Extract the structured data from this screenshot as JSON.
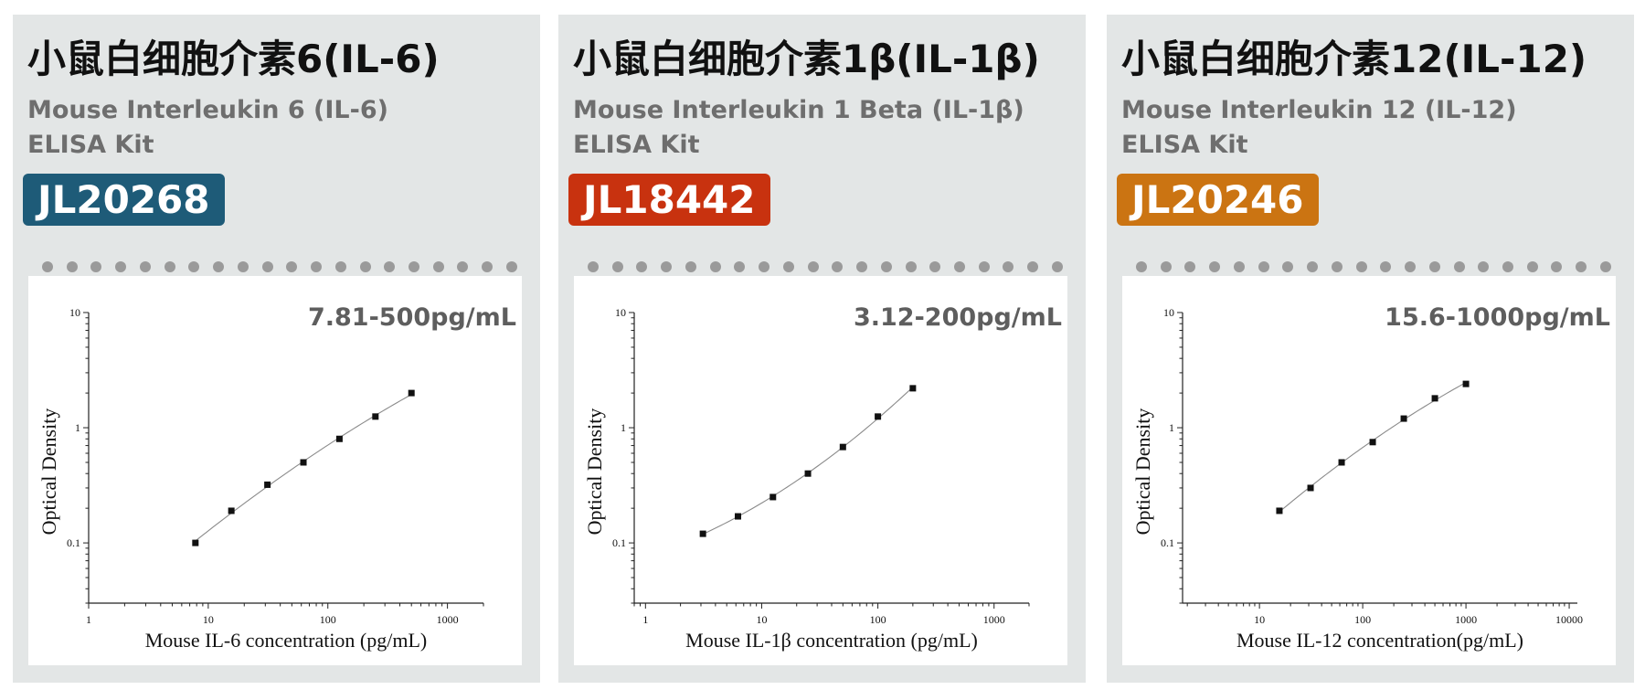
{
  "cards": [
    {
      "title_cn": "小鼠白细胞介素6(IL-6)",
      "title_en_line1": "Mouse Interleukin 6 (IL-6)",
      "title_en_line2": "ELISA Kit",
      "catalog": "JL20268",
      "badge_color": "#1e5b78",
      "range": "7.81-500pg/mL"
    },
    {
      "title_cn": "小鼠白细胞介素1β(IL-1β)",
      "title_en_line1": "Mouse Interleukin 1 Beta (IL-1β)",
      "title_en_line2": "ELISA Kit",
      "catalog": "JL18442",
      "badge_color": "#c8320f",
      "range": "3.12-200pg/mL"
    },
    {
      "title_cn": "小鼠白细胞介素12(IL-12)",
      "title_en_line1": "Mouse Interleukin 12 (IL-12)",
      "title_en_line2": "ELISA Kit",
      "catalog": "JL20246",
      "badge_color": "#cb7412",
      "range": "15.6-1000pg/mL"
    }
  ],
  "chart_data": [
    {
      "type": "scatter",
      "title": "",
      "xlabel": "Mouse IL-6 concentration (pg/mL)",
      "ylabel": "Optical Density",
      "xscale": "log",
      "yscale": "log",
      "xlim": [
        1,
        2000
      ],
      "ylim": [
        0.03,
        10
      ],
      "xticks": [
        "1",
        "10",
        "100",
        "1000"
      ],
      "yticks": [
        "0.1",
        "1",
        "10"
      ],
      "x": [
        7.81,
        15.6,
        31.25,
        62.5,
        125,
        250,
        500
      ],
      "y": [
        0.1,
        0.19,
        0.32,
        0.5,
        0.8,
        1.25,
        2.0
      ],
      "grid": false,
      "fit_line": true
    },
    {
      "type": "scatter",
      "title": "",
      "xlabel": "Mouse IL-1β concentration (pg/mL)",
      "ylabel": "Optical Density",
      "xscale": "log",
      "yscale": "log",
      "xlim": [
        0.8,
        2000
      ],
      "ylim": [
        0.03,
        10
      ],
      "xticks": [
        "1",
        "10",
        "100",
        "1000"
      ],
      "yticks": [
        "0.1",
        "1",
        "10"
      ],
      "x": [
        3.12,
        6.25,
        12.5,
        25,
        50,
        100,
        200
      ],
      "y": [
        0.12,
        0.17,
        0.25,
        0.4,
        0.68,
        1.25,
        2.2
      ],
      "grid": false,
      "fit_line": true
    },
    {
      "type": "scatter",
      "title": "",
      "xlabel": "Mouse IL-12 concentration(pg/mL)",
      "ylabel": "Optical Density",
      "xscale": "log",
      "yscale": "log",
      "xlim": [
        1.8,
        12000
      ],
      "ylim": [
        0.03,
        10
      ],
      "xticks": [
        "10",
        "100",
        "1000",
        "10000"
      ],
      "yticks": [
        "0.1",
        "1",
        "10"
      ],
      "x": [
        15.6,
        31.25,
        62.5,
        125,
        250,
        500,
        1000
      ],
      "y": [
        0.19,
        0.3,
        0.5,
        0.75,
        1.2,
        1.8,
        2.4
      ],
      "grid": false,
      "fit_line": true
    }
  ]
}
